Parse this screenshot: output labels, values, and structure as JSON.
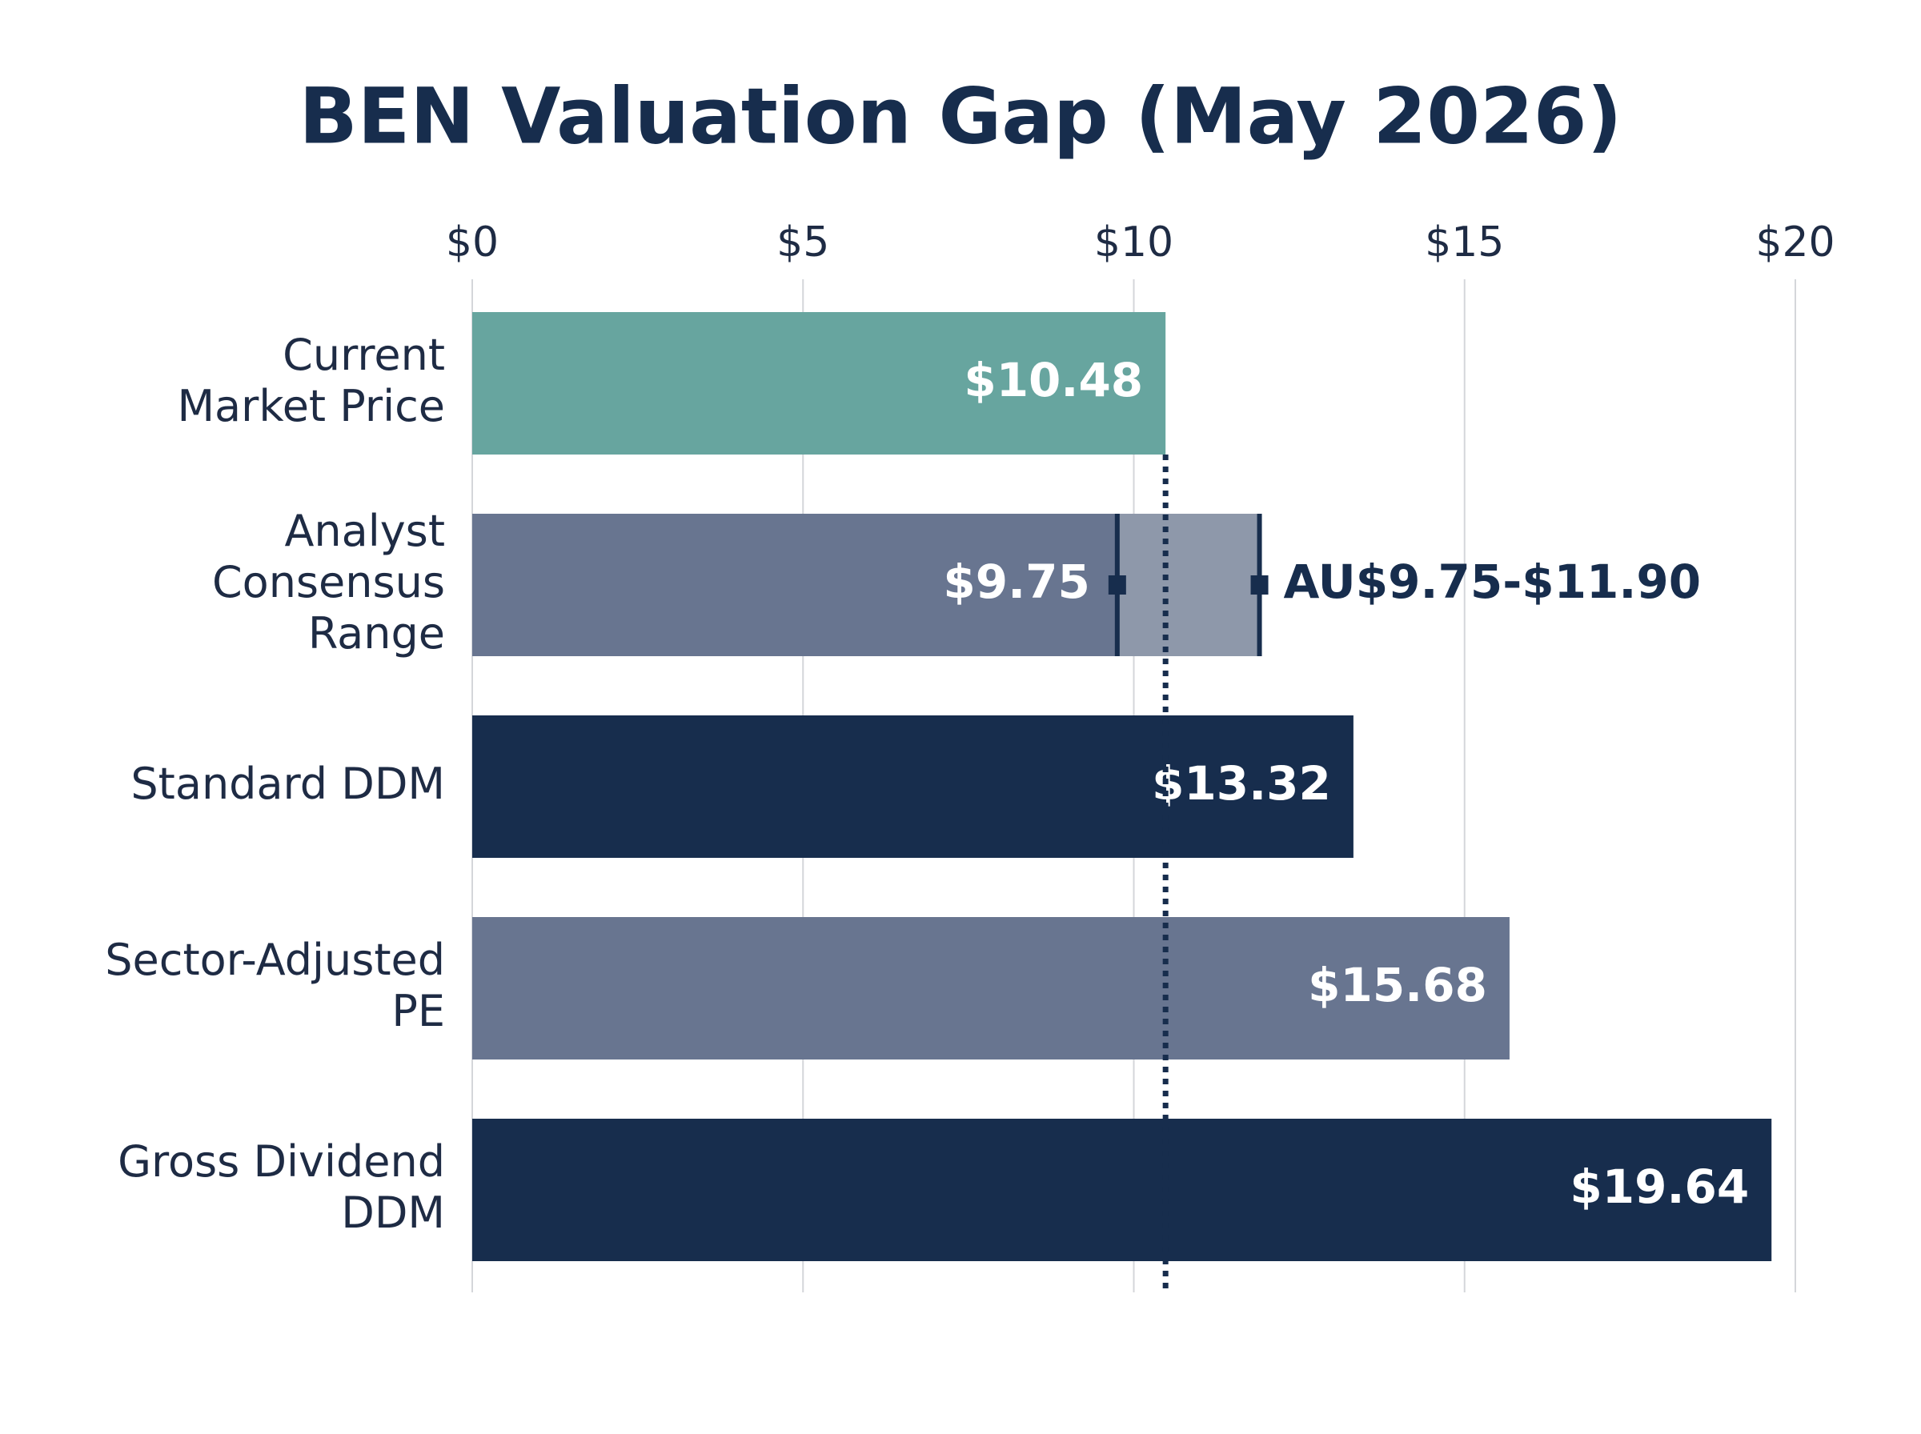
{
  "chart_data": {
    "type": "hbar_range",
    "title": "BEN Valuation Gap (May 2026)",
    "categories": [
      "Current\nMarket Price",
      "Analyst\nConsensus\nRange",
      "Standard DDM",
      "Sector-Adjusted\nPE",
      "Gross Dividend\nDDM"
    ],
    "values": [
      10.48,
      9.75,
      13.32,
      15.68,
      19.64
    ],
    "value_labels": [
      "$10.48",
      "$9.75",
      "$13.32",
      "$15.68",
      "$19.64"
    ],
    "colors": [
      "#67a59f",
      "#687590",
      "#172d4d",
      "#687590",
      "#172d4d"
    ],
    "range_low": [
      null,
      9.75,
      null,
      null,
      null
    ],
    "range_high": [
      null,
      11.9,
      null,
      null,
      null
    ],
    "range_labels": [
      null,
      "AU$9.75-$11.90",
      null,
      null,
      null
    ],
    "range_color": "#8e98aa",
    "xlim": [
      0,
      20
    ],
    "xticks": [
      {
        "value": 0,
        "label": "$0"
      },
      {
        "value": 5,
        "label": "$5"
      },
      {
        "value": 10,
        "label": "$10"
      },
      {
        "value": 15,
        "label": "$15"
      },
      {
        "value": 20,
        "label": "$20"
      }
    ],
    "grid": true
  }
}
